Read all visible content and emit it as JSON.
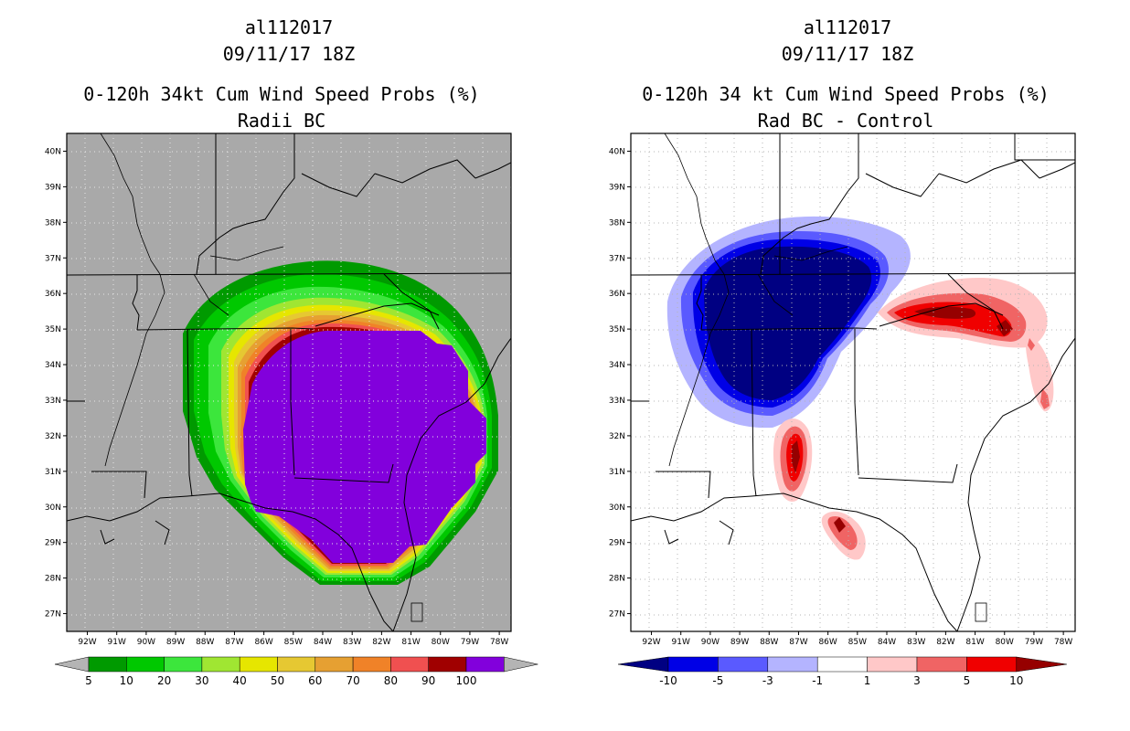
{
  "chart_data": [
    {
      "type": "heatmap",
      "storm_id": "al112017",
      "datetime": "09/11/17 18Z",
      "title": "0-120h 34kt Cum Wind Speed Probs (%)",
      "subtitle": "Radii BC",
      "lon_range": [
        -92.7,
        -77.6
      ],
      "lat_range": [
        26.5,
        40.5
      ],
      "x_ticks": [
        "92W",
        "91W",
        "90W",
        "89W",
        "88W",
        "87W",
        "86W",
        "85W",
        "84W",
        "83W",
        "82W",
        "81W",
        "80W",
        "79W",
        "78W"
      ],
      "y_ticks": [
        "27N",
        "28N",
        "29N",
        "30N",
        "31N",
        "32N",
        "33N",
        "34N",
        "35N",
        "36N",
        "37N",
        "38N",
        "39N",
        "40N"
      ],
      "colorbar": {
        "labels": [
          "5",
          "10",
          "20",
          "30",
          "40",
          "50",
          "60",
          "70",
          "80",
          "90",
          "100"
        ],
        "colors": [
          "#009a00",
          "#00c800",
          "#3ce63c",
          "#a0e632",
          "#e6e600",
          "#e6c832",
          "#e6a032",
          "#f08228",
          "#f05050",
          "#a00000",
          "#8200dc"
        ]
      },
      "background": "#a9a9a9"
    },
    {
      "type": "heatmap",
      "storm_id": "al112017",
      "datetime": "09/11/17 18Z",
      "title": "0-120h 34 kt Cum Wind Speed Probs (%)",
      "subtitle": "Rad BC - Control",
      "lon_range": [
        -92.7,
        -77.6
      ],
      "lat_range": [
        26.5,
        40.5
      ],
      "x_ticks": [
        "92W",
        "91W",
        "90W",
        "89W",
        "88W",
        "87W",
        "86W",
        "85W",
        "84W",
        "83W",
        "82W",
        "81W",
        "80W",
        "79W",
        "78W"
      ],
      "y_ticks": [
        "27N",
        "28N",
        "29N",
        "30N",
        "31N",
        "32N",
        "33N",
        "34N",
        "35N",
        "36N",
        "37N",
        "38N",
        "39N",
        "40N"
      ],
      "colorbar": {
        "labels": [
          "-10",
          "-5",
          "-3",
          "-1",
          "1",
          "3",
          "5",
          "10"
        ],
        "colors": [
          "#000082",
          "#0000e6",
          "#5a5aff",
          "#b4b4ff",
          "#ffffff",
          "#ffc8c8",
          "#f06464",
          "#f00000",
          "#960000"
        ]
      },
      "background": "#ffffff"
    }
  ]
}
